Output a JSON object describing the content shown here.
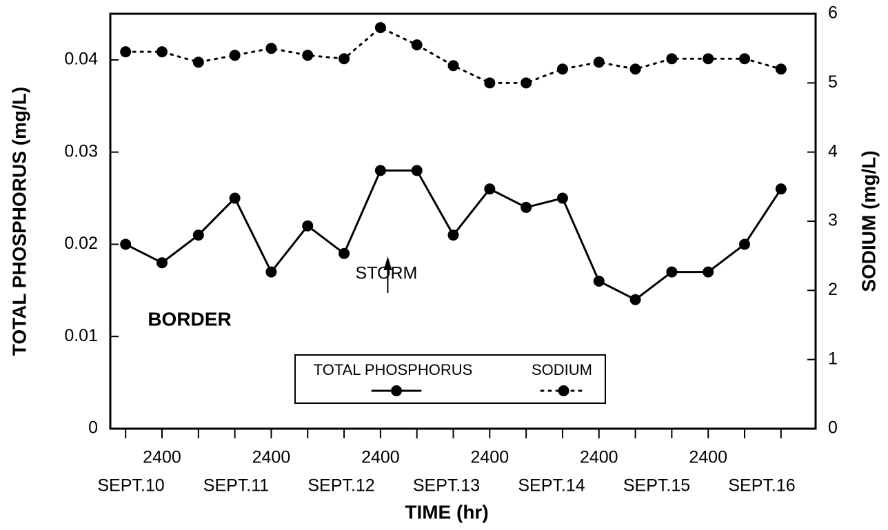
{
  "chart_data": {
    "type": "line",
    "x": [
      0,
      1,
      2,
      3,
      4,
      5,
      6,
      7,
      8,
      9,
      10,
      11,
      12,
      13,
      14,
      15,
      16,
      17,
      18
    ],
    "series": [
      {
        "name": "TOTAL PHOSPHORUS",
        "color": "#000000",
        "dash": "solid",
        "axis": "y",
        "values": [
          0.02,
          0.018,
          0.021,
          0.025,
          0.017,
          0.022,
          0.019,
          0.028,
          0.028,
          0.021,
          0.026,
          0.024,
          0.025,
          0.016,
          0.014,
          0.017,
          0.017,
          0.02,
          0.026
        ]
      },
      {
        "name": "SODIUM",
        "color": "#000000",
        "dash": "dotted",
        "axis": "y2",
        "values": [
          5.45,
          5.45,
          5.3,
          5.4,
          5.5,
          5.4,
          5.35,
          5.8,
          5.55,
          5.25,
          5.0,
          5.0,
          5.2,
          5.3,
          5.2,
          5.35,
          5.35,
          5.35,
          5.2
        ]
      }
    ],
    "xlabel": "TIME (hr)",
    "ylabel": "TOTAL PHOSPHORUS (mg/L)",
    "y2label": "SODIUM (mg/L)",
    "xlim": [
      -0.42,
      18.95
    ],
    "xticks": [
      {
        "value": 1,
        "label": "2400"
      },
      {
        "value": 4,
        "label": "2400"
      },
      {
        "value": 7,
        "label": "2400"
      },
      {
        "value": 10,
        "label": "2400"
      },
      {
        "value": 13,
        "label": "2400"
      },
      {
        "value": 16,
        "label": "2400"
      }
    ],
    "minor_xticks": [
      0,
      2,
      3,
      5,
      6,
      8,
      9,
      11,
      12,
      14,
      15,
      17,
      18
    ],
    "date_labels": [
      "SEPT.10",
      "SEPT.11",
      "SEPT.12",
      "SEPT.13",
      "SEPT.14",
      "SEPT.15",
      "SEPT.16"
    ],
    "ylim": [
      0,
      0.045
    ],
    "yticks": [
      0,
      0.01,
      0.02,
      0.03,
      0.04
    ],
    "y2lim": [
      0,
      6
    ],
    "y2ticks": [
      0,
      1,
      2,
      3,
      4,
      5,
      6
    ],
    "annotations": [
      {
        "text": "STORM",
        "x": 7.2
      },
      {
        "text": "BORDER"
      }
    ]
  }
}
